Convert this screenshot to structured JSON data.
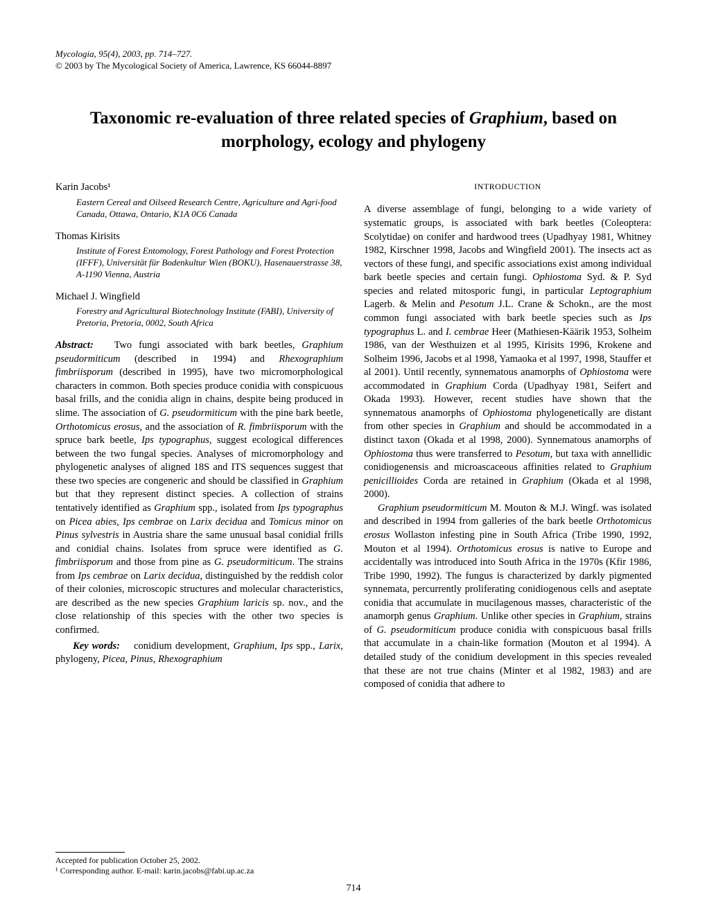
{
  "journal": {
    "name": "Mycologia",
    "volume": "95(4)",
    "year": "2003",
    "pages": "pp. 714–727.",
    "copyright": "© 2003 by The Mycological Society of America, Lawrence, KS 66044-8897"
  },
  "title": "Taxonomic re-evaluation of three related species of Graphium, based on morphology, ecology and phylogeny",
  "authors": [
    {
      "name": "Karin Jacobs¹",
      "affiliation": "Eastern Cereal and Oilseed Research Centre, Agriculture and Agri-food Canada, Ottawa, Ontario, K1A 0C6 Canada"
    },
    {
      "name": "Thomas Kirisits",
      "affiliation": "Institute of Forest Entomology, Forest Pathology and Forest Protection (IFFF), Universität für Bodenkultur Wien (BOKU), Hasenauerstrasse 38, A-1190 Vienna, Austria"
    },
    {
      "name": "Michael J. Wingfield",
      "affiliation": "Forestry and Agricultural Biotechnology Institute (FABI), University of Pretoria, Pretoria, 0002, South Africa"
    }
  ],
  "abstract_label": "Abstract:",
  "abstract_text": " Two fungi associated with bark beetles, Graphium pseudormiticum (described in 1994) and Rhexographium fimbriisporum (described in 1995), have two micromorphological characters in common. Both species produce conidia with conspicuous basal frills, and the conidia align in chains, despite being produced in slime. The association of G. pseudormiticum with the pine bark beetle, Orthotomicus erosus, and the association of R. fimbriisporum with the spruce bark beetle, Ips typographus, suggest ecological differences between the two fungal species. Analyses of micromorphology and phylogenetic analyses of aligned 18S and ITS sequences suggest that these two species are congeneric and should be classified in Graphium but that they represent distinct species. A collection of strains tentatively identified as Graphium spp., isolated from Ips typographus on Picea abies, Ips cembrae on Larix decidua and Tomicus minor on Pinus sylvestris in Austria share the same unusual basal conidial frills and conidial chains. Isolates from spruce were identified as G. fimbriisporum and those from pine as G. pseudormiticum. The strains from Ips cembrae on Larix decidua, distinguished by the reddish color of their colonies, microscopic structures and molecular characteristics, are described as the new species Graphium laricis sp. nov., and the close relationship of this species with the other two species is confirmed.",
  "keywords_label": "Key words:",
  "keywords_text": " conidium development, Graphium, Ips spp., Larix, phylogeny, Picea, Pinus, Rhexographium",
  "intro_heading": "INTRODUCTION",
  "intro_p1": "A diverse assemblage of fungi, belonging to a wide variety of systematic groups, is associated with bark beetles (Coleoptera: Scolytidae) on conifer and hardwood trees (Upadhyay 1981, Whitney 1982, Kirschner 1998, Jacobs and Wingfield 2001). The insects act as vectors of these fungi, and specific associations exist among individual bark beetle species and certain fungi. Ophiostoma Syd. & P. Syd species and related mitosporic fungi, in particular Leptographium Lagerb. & Melin and Pesotum J.L. Crane & Schokn., are the most common fungi associated with bark beetle species such as Ips typographus L. and I. cembrae Heer (Mathiesen-Käärik 1953, Solheim 1986, van der Westhuizen et al 1995, Kirisits 1996, Krokene and Solheim 1996, Jacobs et al 1998, Yamaoka et al 1997, 1998, Stauffer et al 2001). Until recently, synnematous anamorphs of Ophiostoma were accommodated in Graphium Corda (Upadhyay 1981, Seifert and Okada 1993). However, recent studies have shown that the synnematous anamorphs of Ophiostoma phylogenetically are distant from other species in Graphium and should be accommodated in a distinct taxon (Okada et al 1998, 2000). Synnematous anamorphs of Ophiostoma thus were transferred to Pesotum, but taxa with annellidic conidiogenensis and microascaceous affinities related to Graphium penicillioides Corda are retained in Graphium (Okada et al 1998, 2000).",
  "intro_p2": "Graphium pseudormiticum M. Mouton & M.J. Wingf. was isolated and described in 1994 from galleries of the bark beetle Orthotomicus erosus Wollaston infesting pine in South Africa (Tribe 1990, 1992, Mouton et al 1994). Orthotomicus erosus is native to Europe and accidentally was introduced into South Africa in the 1970s (Kfir 1986, Tribe 1990, 1992). The fungus is characterized by darkly pigmented synnemata, percurrently proliferating conidiogenous cells and aseptate conidia that accumulate in mucilagenous masses, characteristic of the anamorph genus Graphium. Unlike other species in Graphium, strains of G. pseudormiticum produce conidia with conspicuous basal frills that accumulate in a chain-like formation (Mouton et al 1994). A detailed study of the conidium development in this species revealed that these are not true chains (Minter et al 1982, 1983) and are composed of conidia that adhere to",
  "footer_accepted": "Accepted for publication October 25, 2002.",
  "footer_corresponding": "¹ Corresponding author. E-mail: karin.jacobs@fabi.up.ac.za",
  "page_number": "714"
}
